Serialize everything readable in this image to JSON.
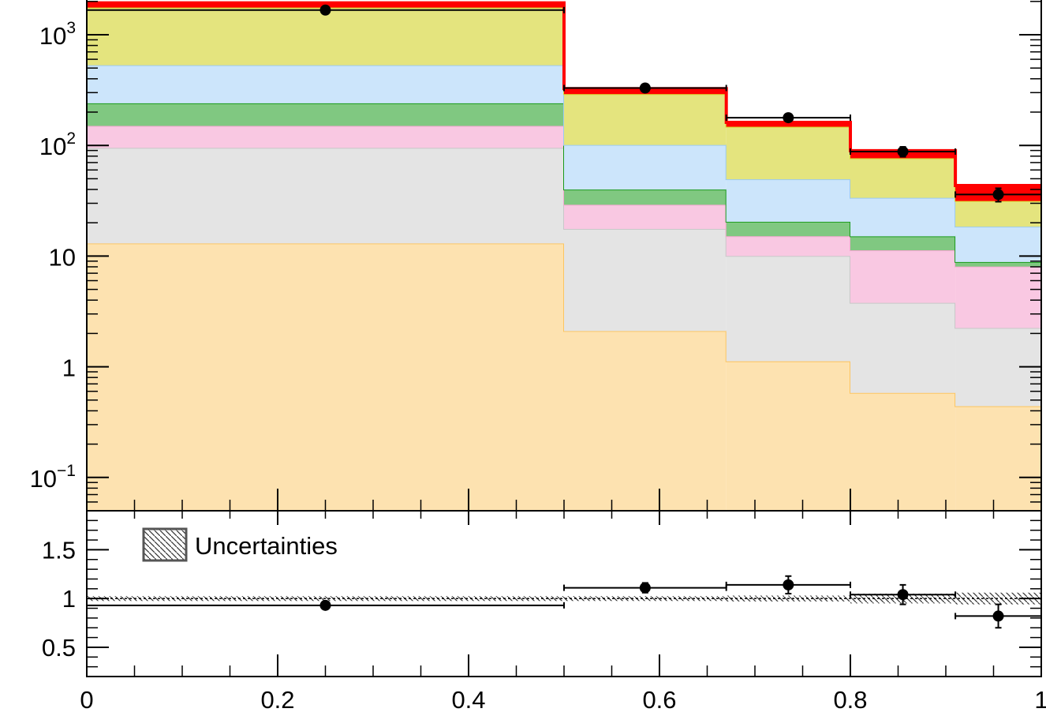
{
  "chart_data": [
    {
      "panel": "main",
      "type": "bar",
      "stacked": true,
      "histogram": true,
      "yscale": "log",
      "ylim": [
        0.05,
        2200
      ],
      "xlim": [
        0,
        1
      ],
      "bin_edges": [
        0,
        0.5,
        0.67,
        0.8,
        0.91,
        1
      ],
      "y_ticks": [
        {
          "value": 0.1,
          "base": "10",
          "exp": "−1"
        },
        {
          "value": 1,
          "label": "1"
        },
        {
          "value": 10,
          "label": "10"
        },
        {
          "value": 100,
          "base": "10",
          "exp": "2"
        },
        {
          "value": 1000,
          "base": "10",
          "exp": "3"
        }
      ],
      "stack": [
        {
          "color": "#fde2b0",
          "edge": "#fdc560",
          "values": [
            13,
            2.1,
            1.12,
            0.58,
            0.44
          ]
        },
        {
          "color": "#e4e4e4",
          "edge": "#c8c8c8",
          "values": [
            82,
            15.5,
            8.9,
            3.2,
            1.8
          ]
        },
        {
          "color": "#f9c8e2",
          "edge": "#f4a8d0",
          "values": [
            55,
            11.5,
            5.1,
            7.5,
            5.8
          ]
        },
        {
          "color": "#80c881",
          "edge": "#1a9a1a",
          "values": [
            90,
            10.8,
            5.3,
            3.8,
            0.8
          ]
        },
        {
          "color": "#cce5fb",
          "edge": "#9ccaf0",
          "values": [
            290,
            61,
            29,
            18.5,
            9.6
          ]
        },
        {
          "color": "#e4e47e",
          "edge": "#d8d830",
          "values": [
            1230,
            190,
            98,
            43,
            13
          ]
        },
        {
          "color": "#ff0000",
          "edge": "#ff0000",
          "values": [
            180,
            35,
            14,
            13,
            12
          ]
        }
      ],
      "data_points": {
        "x": [
          0.25,
          0.585,
          0.735,
          0.855,
          0.955
        ],
        "y": [
          1670,
          330,
          178,
          88,
          36
        ],
        "xerr": [
          0.25,
          0.085,
          0.065,
          0.055,
          0.045
        ],
        "yerr": [
          40,
          18,
          13,
          9,
          5
        ]
      }
    },
    {
      "panel": "ratio",
      "type": "scatter",
      "xlim": [
        0,
        1
      ],
      "ylim": [
        0.2,
        1.9
      ],
      "x_ticks": [
        {
          "value": 0,
          "label": "0"
        },
        {
          "value": 0.2,
          "label": "0.2"
        },
        {
          "value": 0.4,
          "label": "0.4"
        },
        {
          "value": 0.6,
          "label": "0.6"
        },
        {
          "value": 0.8,
          "label": "0.8"
        },
        {
          "value": 1,
          "label": "1"
        }
      ],
      "y_ticks": [
        {
          "value": 0.5,
          "label": "0.5"
        },
        {
          "value": 1,
          "label": "1"
        },
        {
          "value": 1.5,
          "label": "1.5"
        }
      ],
      "legend": {
        "label": "Uncertainties",
        "placement": "top-left"
      },
      "uncertainty_band": {
        "bin_edges": [
          0,
          0.5,
          0.67,
          0.8,
          0.91,
          1
        ],
        "half_width": [
          0.025,
          0.025,
          0.03,
          0.05,
          0.06
        ]
      },
      "data_points": {
        "x": [
          0.25,
          0.585,
          0.735,
          0.855,
          0.955
        ],
        "y": [
          0.93,
          1.11,
          1.14,
          1.04,
          0.82
        ],
        "xerr": [
          0.25,
          0.085,
          0.065,
          0.055,
          0.045
        ],
        "yerr": [
          0.02,
          0.05,
          0.09,
          0.1,
          0.12
        ]
      }
    }
  ]
}
